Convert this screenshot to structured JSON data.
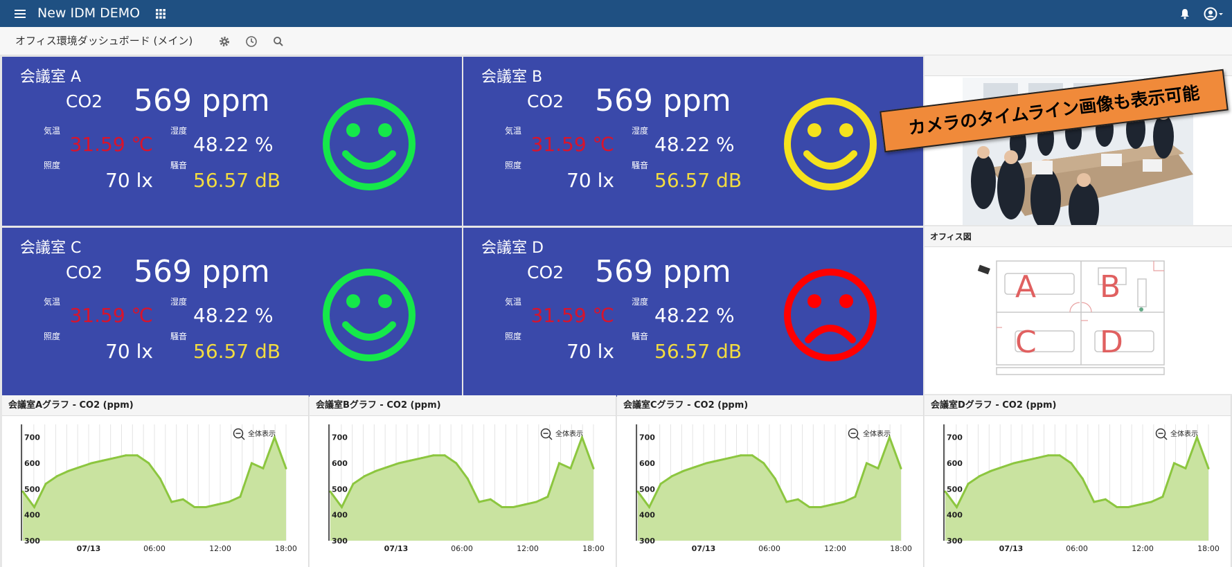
{
  "header": {
    "title": "New IDM DEMO",
    "menu_icon": "hamburger-icon",
    "apps_icon": "grid-icon",
    "bell_icon": "bell-icon",
    "user_icon": "user-icon"
  },
  "toolbar": {
    "dashboard_title": "オフィス環境ダッシュボード (メイン)",
    "icons": [
      "gear-icon",
      "clock-icon",
      "search-icon"
    ]
  },
  "labels": {
    "co2": "CO2",
    "temp": "気温",
    "humidity": "湿度",
    "illum": "照度",
    "noise": "騒音"
  },
  "rooms": [
    {
      "name": "会議室 A",
      "co2": "569 ppm",
      "temp": "31.59 ℃",
      "humidity": "48.22 %",
      "illum": "70 lx",
      "noise": "56.57 dB",
      "face": "smile",
      "face_color": "#15e84a"
    },
    {
      "name": "会議室 B",
      "co2": "569 ppm",
      "temp": "31.59 ℃",
      "humidity": "48.22 %",
      "illum": "70 lx",
      "noise": "56.57 dB",
      "face": "smile",
      "face_color": "#f5e21d"
    },
    {
      "name": "会議室 C",
      "co2": "569 ppm",
      "temp": "31.59 ℃",
      "humidity": "48.22 %",
      "illum": "70 lx",
      "noise": "56.57 dB",
      "face": "smile",
      "face_color": "#15e84a"
    },
    {
      "name": "会議室 D",
      "co2": "569 ppm",
      "temp": "31.59 ℃",
      "humidity": "48.22 %",
      "illum": "70 lx",
      "noise": "56.57 dB",
      "face": "frown",
      "face_color": "#ff0000"
    }
  ],
  "colors": {
    "temp": "#d8142c",
    "noise": "#f2dc40",
    "panel": "#3a49aa",
    "header": "#1f5082",
    "area": "#c9e3a0",
    "line": "#8cc63f"
  },
  "banner": "カメラのタイムライン画像も表示可能",
  "office_map": {
    "title": "オフィス図",
    "rooms": [
      "A",
      "B",
      "C",
      "D"
    ]
  },
  "zoom_label": "全体表示",
  "chart_data": [
    {
      "type": "area",
      "title": "会議室Aグラフ - CO2 (ppm)",
      "ylim": [
        300,
        750
      ],
      "yticks": [
        300,
        400,
        500,
        600,
        700
      ],
      "xticks": [
        "07/13",
        "06:00",
        "12:00",
        "18:00"
      ],
      "x": [
        0,
        1,
        2,
        3,
        4,
        5,
        6,
        7,
        8,
        9,
        10,
        11,
        12,
        13,
        14,
        15,
        16,
        17,
        18,
        19,
        20,
        21,
        22,
        23
      ],
      "values": [
        490,
        430,
        520,
        550,
        570,
        585,
        600,
        610,
        620,
        630,
        630,
        600,
        540,
        450,
        460,
        430,
        430,
        440,
        450,
        470,
        600,
        580,
        700,
        580
      ]
    },
    {
      "type": "area",
      "title": "会議室Bグラフ - CO2 (ppm)",
      "ylim": [
        300,
        750
      ],
      "yticks": [
        300,
        400,
        500,
        600,
        700
      ],
      "xticks": [
        "07/13",
        "06:00",
        "12:00",
        "18:00"
      ],
      "x": [
        0,
        1,
        2,
        3,
        4,
        5,
        6,
        7,
        8,
        9,
        10,
        11,
        12,
        13,
        14,
        15,
        16,
        17,
        18,
        19,
        20,
        21,
        22,
        23
      ],
      "values": [
        490,
        430,
        520,
        550,
        570,
        585,
        600,
        610,
        620,
        630,
        630,
        600,
        540,
        450,
        460,
        430,
        430,
        440,
        450,
        470,
        600,
        580,
        700,
        580
      ]
    },
    {
      "type": "area",
      "title": "会議室Cグラフ - CO2 (ppm)",
      "ylim": [
        300,
        750
      ],
      "yticks": [
        300,
        400,
        500,
        600,
        700
      ],
      "xticks": [
        "07/13",
        "06:00",
        "12:00",
        "18:00"
      ],
      "x": [
        0,
        1,
        2,
        3,
        4,
        5,
        6,
        7,
        8,
        9,
        10,
        11,
        12,
        13,
        14,
        15,
        16,
        17,
        18,
        19,
        20,
        21,
        22,
        23
      ],
      "values": [
        490,
        430,
        520,
        550,
        570,
        585,
        600,
        610,
        620,
        630,
        630,
        600,
        540,
        450,
        460,
        430,
        430,
        440,
        450,
        470,
        600,
        580,
        700,
        580
      ]
    },
    {
      "type": "area",
      "title": "会議室Dグラフ - CO2 (ppm)",
      "ylim": [
        300,
        750
      ],
      "yticks": [
        300,
        400,
        500,
        600,
        700
      ],
      "xticks": [
        "07/13",
        "06:00",
        "12:00",
        "18:00"
      ],
      "x": [
        0,
        1,
        2,
        3,
        4,
        5,
        6,
        7,
        8,
        9,
        10,
        11,
        12,
        13,
        14,
        15,
        16,
        17,
        18,
        19,
        20,
        21,
        22,
        23
      ],
      "values": [
        490,
        430,
        520,
        550,
        570,
        585,
        600,
        610,
        620,
        630,
        630,
        600,
        540,
        450,
        460,
        430,
        430,
        440,
        450,
        470,
        600,
        580,
        700,
        580
      ]
    }
  ]
}
